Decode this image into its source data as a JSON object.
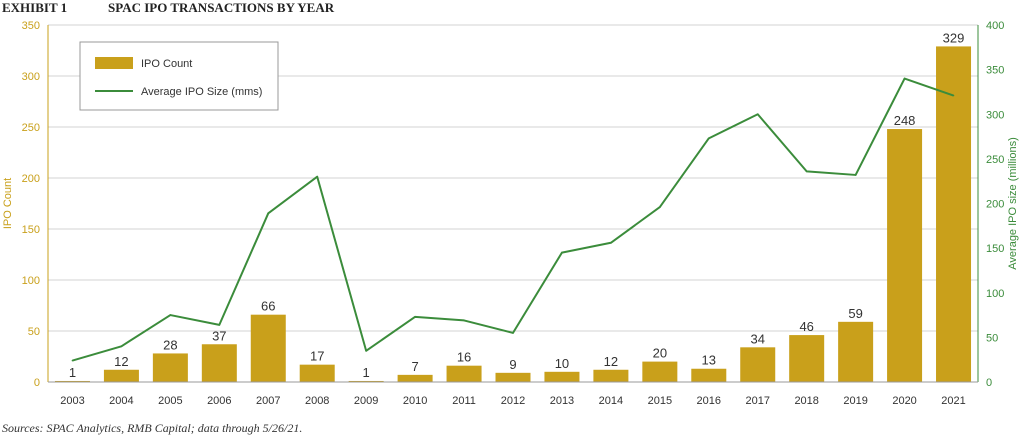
{
  "header": {
    "exhibit": "EXHIBIT 1",
    "title": "SPAC IPO TRANSACTIONS BY YEAR"
  },
  "source": "Sources: SPAC Analytics, RMB Capital; data through 5/26/21.",
  "colors": {
    "bar": "#c9a01b",
    "line": "#3b8c3b",
    "left_axis": "#c9a01b",
    "right_axis": "#3b8c3b",
    "grid": "#d3d3d3"
  },
  "chart_data": {
    "type": "bar",
    "categories": [
      "2003",
      "2004",
      "2005",
      "2006",
      "2007",
      "2008",
      "2009",
      "2010",
      "2011",
      "2012",
      "2013",
      "2014",
      "2015",
      "2016",
      "2017",
      "2018",
      "2019",
      "2020",
      "2021"
    ],
    "series": [
      {
        "name": "IPO Count",
        "type": "bar",
        "axis": "left",
        "values": [
          1,
          12,
          28,
          37,
          66,
          17,
          1,
          7,
          16,
          9,
          10,
          12,
          20,
          13,
          34,
          46,
          59,
          248,
          329
        ]
      },
      {
        "name": "Average IPO Size (mms)",
        "type": "line",
        "axis": "right",
        "values": [
          24,
          40,
          75,
          64,
          189,
          230,
          35,
          73,
          69,
          55,
          145,
          156,
          196,
          273,
          300,
          236,
          232,
          340,
          321
        ]
      }
    ],
    "ylabel_left": "IPO Count",
    "ylabel_right": "Average IPO size (millions)",
    "ylim_left": [
      0,
      350
    ],
    "ylim_right": [
      0,
      400
    ],
    "yticks_left": [
      0,
      50,
      100,
      150,
      200,
      250,
      300,
      350
    ],
    "yticks_right": [
      0,
      50,
      100,
      150,
      200,
      250,
      300,
      350,
      400
    ],
    "grid": "horizontal",
    "legend_position": "top-left"
  }
}
